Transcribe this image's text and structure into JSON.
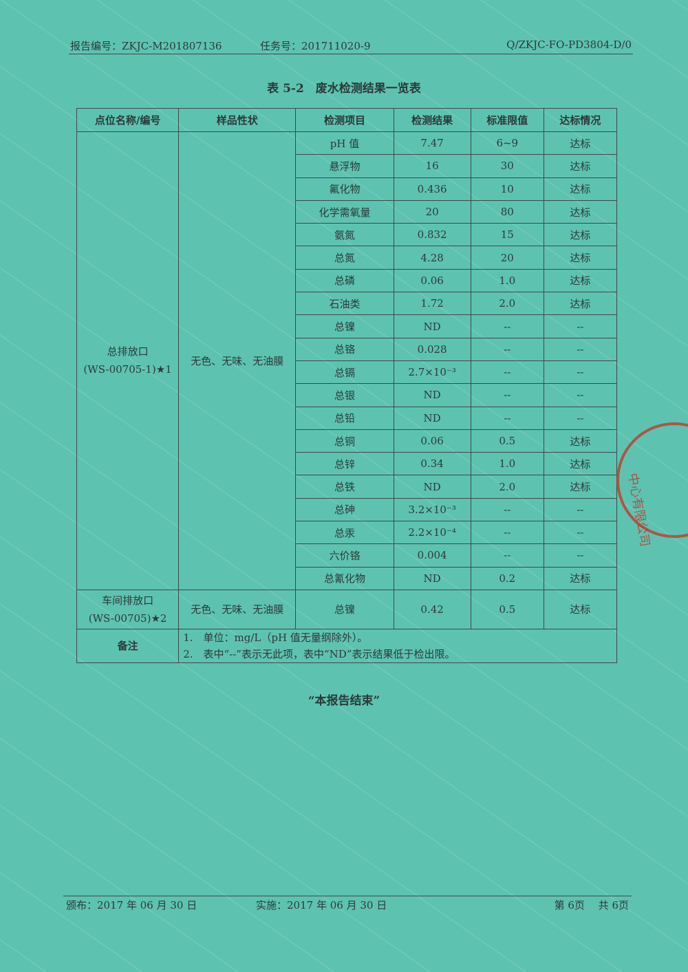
{
  "header": {
    "report_no": "报告编号：ZKJC-M201807136",
    "task_no": "任务号：201711020-9",
    "doc_code": "Q/ZKJC-FO-PD3804-D/0"
  },
  "title": "表 5-2　废水检测结果一览表",
  "table": {
    "columns": [
      "点位名称/编号",
      "样品性状",
      "检测项目",
      "检测结果",
      "标准限值",
      "达标情况"
    ],
    "groups": [
      {
        "site_line1": "总排放口",
        "site_line2": "(WS-00705-1)★1",
        "appearance": "无色、无味、无油膜",
        "rows": [
          [
            "pH 值",
            "7.47",
            "6~9",
            "达标"
          ],
          [
            "悬浮物",
            "16",
            "30",
            "达标"
          ],
          [
            "氟化物",
            "0.436",
            "10",
            "达标"
          ],
          [
            "化学需氧量",
            "20",
            "80",
            "达标"
          ],
          [
            "氨氮",
            "0.832",
            "15",
            "达标"
          ],
          [
            "总氮",
            "4.28",
            "20",
            "达标"
          ],
          [
            "总磷",
            "0.06",
            "1.0",
            "达标"
          ],
          [
            "石油类",
            "1.72",
            "2.0",
            "达标"
          ],
          [
            "总镍",
            "ND",
            "--",
            "--"
          ],
          [
            "总铬",
            "0.028",
            "--",
            "--"
          ],
          [
            "总镉",
            "2.7×10⁻³",
            "--",
            "--"
          ],
          [
            "总银",
            "ND",
            "--",
            "--"
          ],
          [
            "总铅",
            "ND",
            "--",
            "--"
          ],
          [
            "总铜",
            "0.06",
            "0.5",
            "达标"
          ],
          [
            "总锌",
            "0.34",
            "1.0",
            "达标"
          ],
          [
            "总铁",
            "ND",
            "2.0",
            "达标"
          ],
          [
            "总砷",
            "3.2×10⁻³",
            "--",
            "--"
          ],
          [
            "总汞",
            "2.2×10⁻⁴",
            "--",
            "--"
          ],
          [
            "六价铬",
            "0.004",
            "--",
            "--"
          ],
          [
            "总氰化物",
            "ND",
            "0.2",
            "达标"
          ]
        ]
      },
      {
        "site_line1": "车间排放口",
        "site_line2": "(WS-00705)★2",
        "appearance": "无色、无味、无油膜",
        "rows": [
          [
            "总镍",
            "0.42",
            "0.5",
            "达标"
          ]
        ]
      }
    ],
    "notes_label": "备注",
    "notes": [
      "1.　单位：mg/L（pH 值无量纲除外）。",
      "2.　表中“--”表示无此项，表中“ND”表示结果低于检出限。"
    ]
  },
  "end_text": "“本报告结束”",
  "footer": {
    "issued": "颁布：2017 年 06 月 30 日",
    "effective": "实施：2017 年 06 月 30 日",
    "page": "第 6页　 共 6页"
  },
  "stamp": {
    "text": "…检测技术中心有限公司",
    "color": "#c0392b"
  },
  "colors": {
    "paper": "#5ec2b1",
    "ink": "#2a3a38"
  }
}
